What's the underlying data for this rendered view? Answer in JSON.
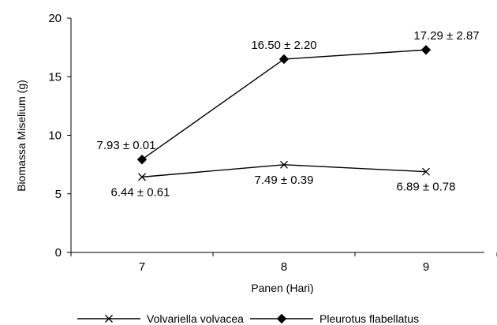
{
  "chart_data": {
    "type": "line",
    "xlabel": "Panen (Hari)",
    "ylabel": "Biomassa Miselium (g)",
    "categories": [
      "7",
      "8",
      "9"
    ],
    "ylim": [
      0,
      20
    ],
    "yticks": [
      "0",
      "5",
      "10",
      "15",
      "20"
    ],
    "grid": false,
    "legend_position": "bottom",
    "series": [
      {
        "name": "Volvariella volvacea",
        "marker": "x",
        "values": [
          6.44,
          7.49,
          6.89
        ],
        "labels": [
          "6.44 ± 0.61",
          "7.49 ± 0.39",
          "6.89 ± 0.78"
        ]
      },
      {
        "name": "Pleurotus flabellatus",
        "marker": "diamond",
        "values": [
          7.93,
          16.5,
          17.29
        ],
        "labels": [
          "7.93 ± 0.01",
          "16.50 ± 2.20",
          "17.29 ± 2.87"
        ]
      }
    ]
  }
}
